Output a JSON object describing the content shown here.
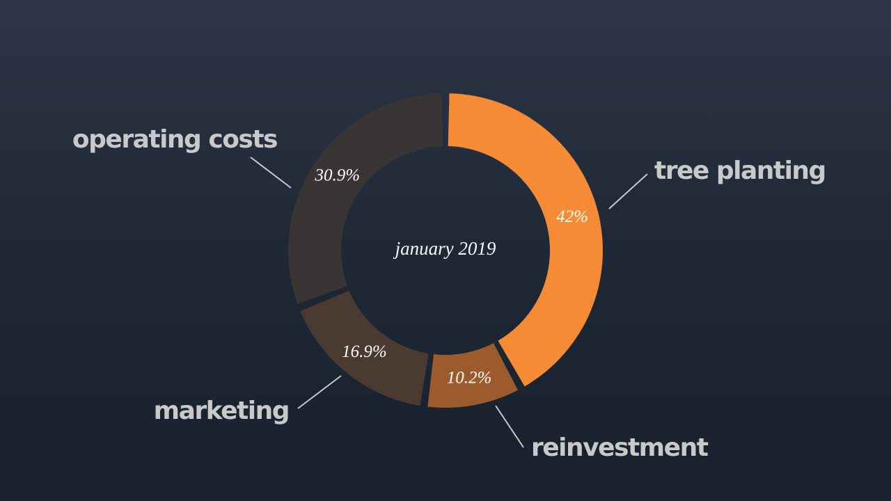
{
  "chart_data": {
    "type": "donut",
    "title": "january 2019",
    "categories": [
      "tree planting",
      "reinvestment",
      "marketing",
      "operating costs"
    ],
    "values": [
      42,
      10.2,
      16.9,
      30.9
    ],
    "value_labels": [
      "42%",
      "10.2%",
      "16.9%",
      "30.9%"
    ],
    "colors": [
      "#f58b35",
      "#9b5b2d",
      "#4b3a32",
      "#393535"
    ]
  }
}
